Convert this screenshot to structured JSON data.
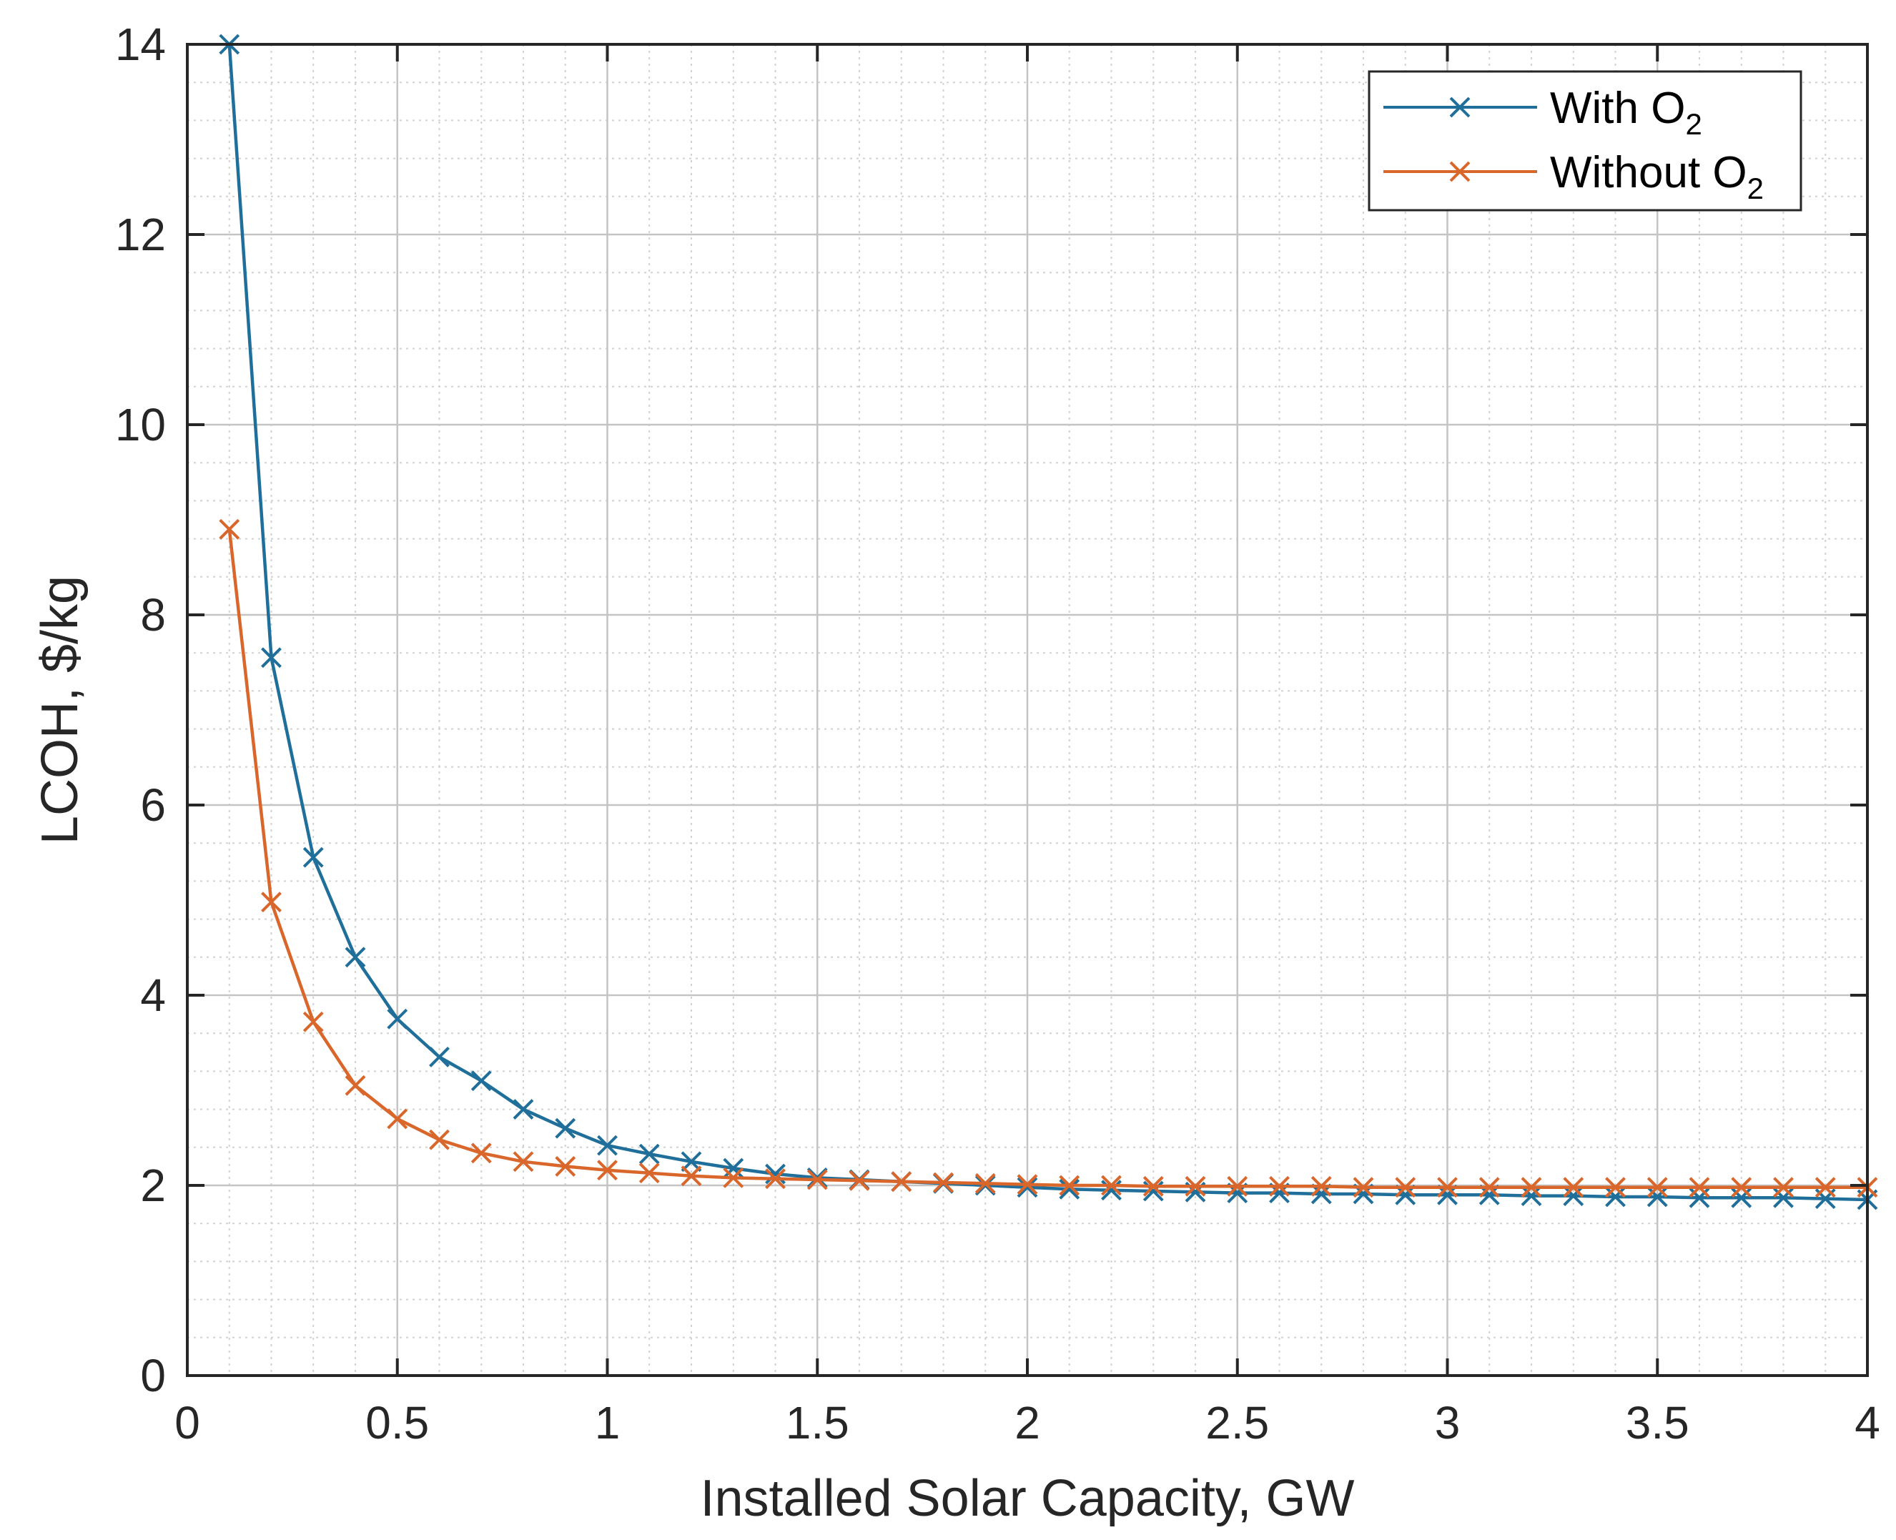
{
  "chart_data": {
    "type": "line",
    "title": "",
    "xlabel": "Installed Solar Capacity, GW",
    "ylabel": "LCOH, $/kg",
    "xlim": [
      0,
      4
    ],
    "ylim": [
      0,
      14
    ],
    "xticks": [
      0,
      0.5,
      1,
      1.5,
      2,
      2.5,
      3,
      3.5,
      4
    ],
    "xtick_labels": [
      "0",
      "0.5",
      "1",
      "1.5",
      "2",
      "2.5",
      "3",
      "3.5",
      "4"
    ],
    "yticks": [
      0,
      2,
      4,
      6,
      8,
      10,
      12,
      14
    ],
    "ytick_labels": [
      "0",
      "2",
      "4",
      "6",
      "8",
      "10",
      "12",
      "14"
    ],
    "grid": true,
    "minor_grid": true,
    "legend_position": "top-right",
    "x": [
      0.1,
      0.2,
      0.3,
      0.4,
      0.5,
      0.6,
      0.7,
      0.8,
      0.9,
      1.0,
      1.1,
      1.2,
      1.3,
      1.4,
      1.5,
      1.6,
      1.7,
      1.8,
      1.9,
      2.0,
      2.1,
      2.2,
      2.3,
      2.4,
      2.5,
      2.6,
      2.7,
      2.8,
      2.9,
      3.0,
      3.1,
      3.2,
      3.3,
      3.4,
      3.5,
      3.6,
      3.7,
      3.8,
      3.9,
      4.0
    ],
    "series": [
      {
        "name": "With O2",
        "legend_main": "With O",
        "legend_sub": "2",
        "color": "#1f6f9a",
        "marker": "x",
        "values": [
          14.0,
          7.55,
          5.45,
          4.4,
          3.75,
          3.35,
          3.1,
          2.8,
          2.6,
          2.42,
          2.33,
          2.25,
          2.18,
          2.12,
          2.08,
          2.06,
          2.04,
          2.02,
          2.0,
          1.98,
          1.96,
          1.95,
          1.94,
          1.93,
          1.92,
          1.92,
          1.91,
          1.91,
          1.9,
          1.9,
          1.9,
          1.89,
          1.89,
          1.88,
          1.88,
          1.87,
          1.87,
          1.87,
          1.86,
          1.85
        ]
      },
      {
        "name": "Without O2",
        "legend_main": "Without O",
        "legend_sub": "2",
        "color": "#d9662a",
        "marker": "x",
        "values": [
          8.9,
          4.98,
          3.72,
          3.05,
          2.7,
          2.48,
          2.34,
          2.25,
          2.2,
          2.16,
          2.13,
          2.1,
          2.08,
          2.07,
          2.06,
          2.05,
          2.04,
          2.03,
          2.02,
          2.01,
          2.0,
          2.0,
          1.99,
          1.99,
          1.99,
          1.99,
          1.99,
          1.98,
          1.98,
          1.98,
          1.98,
          1.98,
          1.98,
          1.98,
          1.98,
          1.98,
          1.98,
          1.98,
          1.98,
          1.98
        ]
      }
    ]
  }
}
